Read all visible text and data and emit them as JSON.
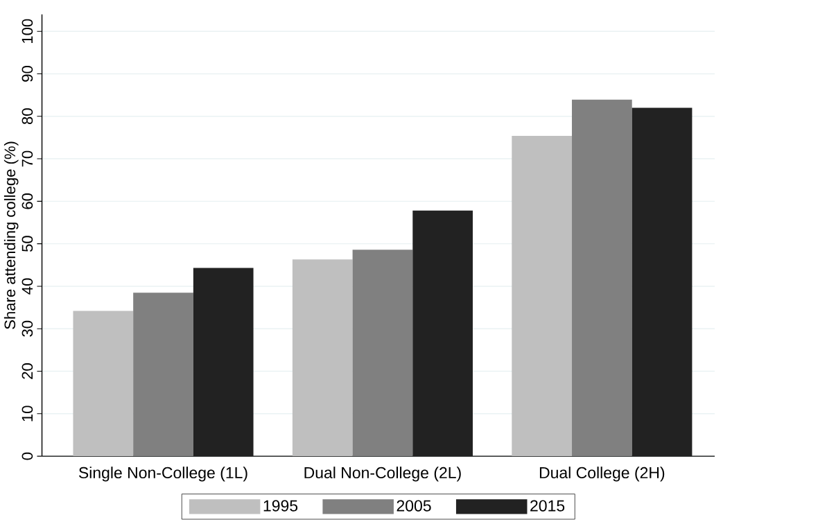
{
  "chart_data": {
    "type": "bar",
    "ylabel": "Share attending college (%)",
    "categories": [
      "Single Non-College (1L)",
      "Dual Non-College (2L)",
      "Dual College (2H)"
    ],
    "series": [
      {
        "name": "1995",
        "color": "#bfbfbf",
        "values": [
          34.2,
          46.3,
          75.4
        ]
      },
      {
        "name": "2005",
        "color": "#808080",
        "values": [
          38.5,
          48.6,
          83.9
        ]
      },
      {
        "name": "2015",
        "color": "#222222",
        "values": [
          44.3,
          57.8,
          82.0
        ]
      }
    ],
    "ylim": [
      0,
      104
    ],
    "yticks": [
      0,
      10,
      20,
      30,
      40,
      50,
      60,
      70,
      80,
      90,
      100
    ],
    "grid": "y",
    "legend": "bottom"
  }
}
